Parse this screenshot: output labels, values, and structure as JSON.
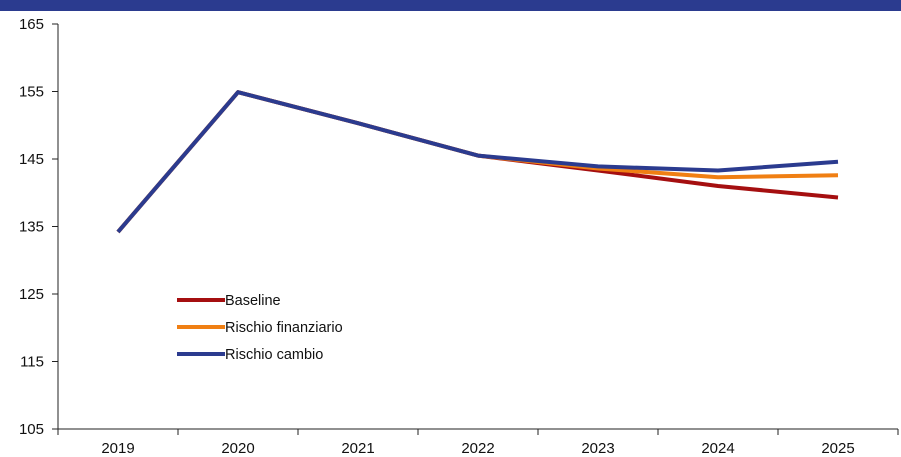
{
  "title": "",
  "chart_data": {
    "type": "line",
    "title": "",
    "xlabel": "",
    "ylabel": "",
    "x": [
      "2019",
      "2020",
      "2021",
      "2022",
      "2023",
      "2024",
      "2025"
    ],
    "ylim": [
      105,
      165
    ],
    "yticks": [
      105,
      115,
      125,
      135,
      145,
      155,
      165
    ],
    "grid": false,
    "legend_position": "lower-left",
    "series": [
      {
        "name": "Baseline",
        "color": "#a50f10",
        "values": [
          134.2,
          154.9,
          150.3,
          145.5,
          143.3,
          141.0,
          139.3
        ]
      },
      {
        "name": "Rischio finanziario",
        "color": "#f07f13",
        "values": [
          134.2,
          154.9,
          150.3,
          145.5,
          143.6,
          142.3,
          142.6
        ]
      },
      {
        "name": "Rischio cambio",
        "color": "#2b3b8f",
        "values": [
          134.2,
          154.9,
          150.3,
          145.5,
          143.9,
          143.3,
          144.6
        ]
      }
    ]
  }
}
